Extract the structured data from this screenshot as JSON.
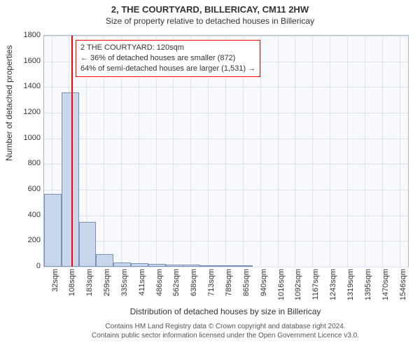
{
  "title": "2, THE COURTYARD, BILLERICAY, CM11 2HW",
  "subtitle": "Size of property relative to detached houses in Billericay",
  "ylabel": "Number of detached properties",
  "xaxis_title": "Distribution of detached houses by size in Billericay",
  "footer1": "Contains HM Land Registry data © Crown copyright and database right 2024.",
  "footer2": "Contains public sector information licensed under the Open Government Licence v3.0.",
  "chart": {
    "type": "histogram",
    "background_color": "#f7f9fc",
    "grid_color": "#dde4ee",
    "border_color": "#a9b8cc",
    "bar_fill": "#c9d7ec",
    "bar_stroke": "#7a91b3",
    "ylim": [
      0,
      1800
    ],
    "yticks": [
      0,
      200,
      400,
      600,
      800,
      1000,
      1200,
      1400,
      1600,
      1800
    ],
    "x_range": [
      0,
      1584
    ],
    "xticks": [
      32,
      108,
      183,
      259,
      335,
      411,
      486,
      562,
      638,
      713,
      789,
      865,
      940,
      1016,
      1092,
      1167,
      1243,
      1319,
      1395,
      1470,
      1546
    ],
    "xtick_suffix": "sqm",
    "bins_left_edge": [
      0,
      75.6,
      151.2,
      226.7,
      302.3,
      377.9,
      453.5,
      529.1,
      604.6,
      680.2,
      755.8,
      831.4
    ],
    "bin_width": 75.6,
    "counts": [
      570,
      1360,
      350,
      100,
      35,
      25,
      20,
      18,
      14,
      12,
      10,
      6
    ],
    "refline_x": 120,
    "refline_color": "#ff0000",
    "annotation": {
      "line1": "2 THE COURTYARD: 120sqm",
      "line2": "← 36% of detached houses are smaller (872)",
      "line3": "64% of semi-detached houses are larger (1,531) →",
      "border_color": "#ff0000"
    }
  }
}
